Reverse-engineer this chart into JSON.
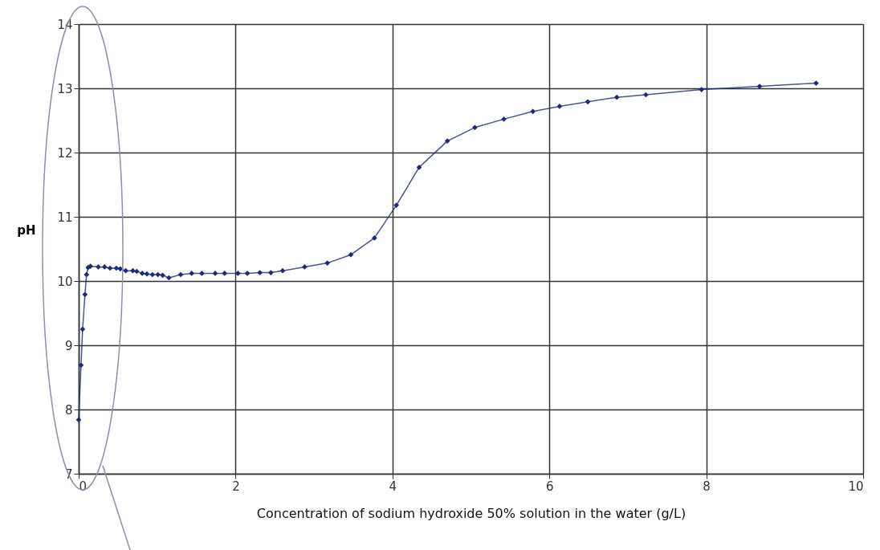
{
  "chart_data": {
    "type": "line",
    "xlabel": "Concentration of sodium hydroxide 50% solution in the water (g/L)",
    "ylabel": "pH",
    "xlim": [
      0,
      10
    ],
    "xticks": [
      0,
      2,
      4,
      6,
      8,
      10
    ],
    "ylim": [
      7,
      14
    ],
    "yticks": [
      7,
      8,
      9,
      10,
      11,
      12,
      13,
      14
    ],
    "grid": true,
    "marker": "diamond",
    "line_style": "solid",
    "series": [
      {
        "color": "#1c2a78",
        "x": [
          0,
          0.03,
          0.05,
          0.08,
          0.1,
          0.12,
          0.15,
          0.25,
          0.33,
          0.4,
          0.48,
          0.53,
          0.6,
          0.69,
          0.74,
          0.81,
          0.87,
          0.94,
          1.01,
          1.07,
          1.15,
          1.3,
          1.44,
          1.57,
          1.74,
          1.86,
          2.03,
          2.15,
          2.31,
          2.45,
          2.6,
          2.88,
          3.17,
          3.47,
          3.77,
          4.05,
          4.34,
          4.7,
          5.05,
          5.42,
          5.79,
          6.13,
          6.49,
          6.86,
          7.23,
          7.94,
          8.68,
          9.4
        ],
        "values": [
          7.84,
          8.69,
          9.25,
          9.79,
          10.1,
          10.21,
          10.23,
          10.22,
          10.22,
          10.2,
          10.2,
          10.19,
          10.16,
          10.16,
          10.15,
          10.12,
          10.11,
          10.1,
          10.1,
          10.09,
          10.05,
          10.1,
          10.12,
          10.12,
          10.12,
          10.12,
          10.12,
          10.12,
          10.13,
          10.13,
          10.16,
          10.22,
          10.28,
          10.41,
          10.67,
          11.18,
          11.77,
          12.18,
          12.39,
          12.52,
          12.64,
          12.72,
          12.79,
          12.86,
          12.9,
          12.98,
          13.03,
          13.08
        ]
      }
    ]
  }
}
